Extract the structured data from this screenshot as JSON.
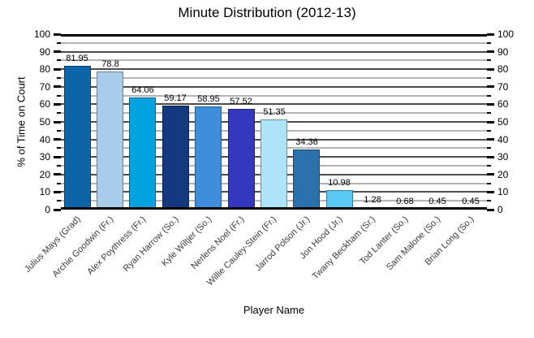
{
  "chart_data": {
    "type": "bar",
    "title": "Minute Distribution (2012-13)",
    "xlabel": "Player Name",
    "ylabel": "% of Time on Court",
    "ylim": [
      0,
      100
    ],
    "yticks_major": [
      0,
      10,
      20,
      30,
      40,
      50,
      60,
      70,
      80,
      90,
      100
    ],
    "ytick_minor_step": 5,
    "grid": true,
    "legend": "none",
    "dual_y_axis": true,
    "categories": [
      "Julius Mays (Grad)",
      "Archie Goodwin (Fr.)",
      "Alex Poythress (Fr.)",
      "Ryan Harrow (So.)",
      "Kyle Wiltjer (So.)",
      "Nerlens Noel (Fr.)",
      "Willie Cauley-Stein (Fr.)",
      "Jarrod Polson (Jr.)",
      "Jon Hood (Jr.)",
      "Twany Beckham (Sr.)",
      "Tod Lanter (So.)",
      "Sam Malone (So.)",
      "Brian Long (So.)"
    ],
    "values": [
      81.95,
      78.8,
      64.06,
      59.17,
      58.95,
      57.52,
      51.35,
      34.36,
      10.98,
      1.28,
      0.68,
      0.45,
      0.45
    ],
    "value_labels": [
      "81.95",
      "78.8",
      "64.06",
      "59.17",
      "58.95",
      "57.52",
      "51.35",
      "34.36",
      "10.98",
      "1.28",
      "0.68",
      "0.45",
      "0.45"
    ],
    "bar_colors": [
      "#0D64A7",
      "#A9CCEA",
      "#00A3DF",
      "#15397F",
      "#3E8EDC",
      "#3438BE",
      "#AEE4F8",
      "#2B71AC",
      "#59C9F4",
      "#1A3A9C",
      "#30659B",
      "#7E99B4",
      "#2C80AD"
    ],
    "gridline_major_color": "#4D4D4D",
    "gridline_minor_color": "#B3B3B3",
    "axis_color": "#000000",
    "background_color": "#FFFFFF"
  }
}
